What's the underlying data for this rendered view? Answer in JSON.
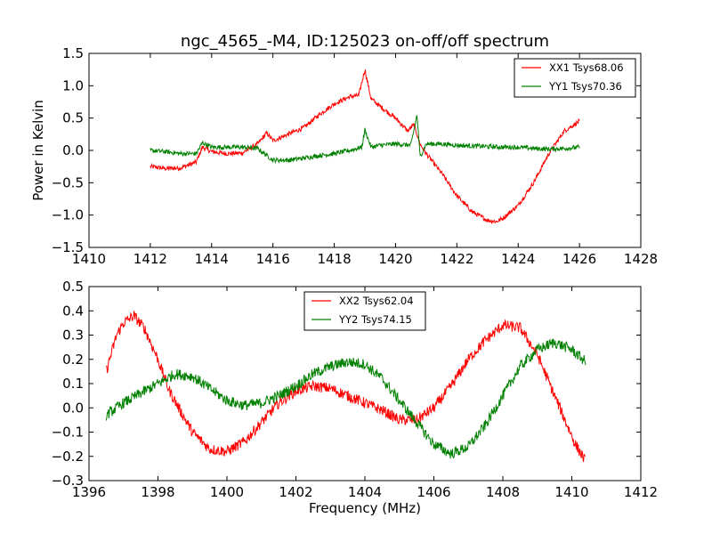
{
  "chart_data": [
    {
      "type": "line",
      "title": "ngc_4565_-M4, ID:125023 on-off/off spectrum",
      "xlabel": "",
      "ylabel": "Power in Kelvin",
      "xlim": [
        1410,
        1428
      ],
      "ylim": [
        -1.5,
        1.5
      ],
      "xticks": [
        "1410",
        "1412",
        "1414",
        "1416",
        "1418",
        "1420",
        "1422",
        "1424",
        "1426",
        "1428"
      ],
      "yticks": [
        "1.5",
        "1.0",
        "0.5",
        "0.0",
        "−0.5",
        "−1.0",
        "−1.5"
      ],
      "legend_position": "top-right",
      "series": [
        {
          "name": "XX1 Tsys68.06",
          "color": "#ff0000",
          "x": [
            1412.0,
            1412.5,
            1413.0,
            1413.5,
            1413.7,
            1414.0,
            1414.5,
            1415.0,
            1415.5,
            1415.8,
            1416.0,
            1416.5,
            1417.0,
            1417.5,
            1418.0,
            1418.5,
            1418.8,
            1419.0,
            1419.2,
            1419.5,
            1420.0,
            1420.4,
            1420.6,
            1420.8,
            1421.0,
            1421.5,
            1422.0,
            1422.5,
            1423.0,
            1423.3,
            1423.5,
            1424.0,
            1424.5,
            1425.0,
            1425.5,
            1426.0
          ],
          "y": [
            -0.25,
            -0.28,
            -0.27,
            -0.18,
            0.05,
            -0.02,
            -0.05,
            -0.04,
            0.1,
            0.27,
            0.15,
            0.25,
            0.35,
            0.55,
            0.72,
            0.83,
            0.85,
            1.25,
            0.8,
            0.68,
            0.5,
            0.3,
            0.4,
            0.1,
            -0.05,
            -0.35,
            -0.7,
            -0.95,
            -1.08,
            -1.1,
            -1.05,
            -0.85,
            -0.5,
            -0.05,
            0.3,
            0.45
          ]
        },
        {
          "name": "YY1 Tsys70.36",
          "color": "#008000",
          "x": [
            1412.0,
            1412.5,
            1413.0,
            1413.5,
            1413.7,
            1414.0,
            1414.5,
            1415.0,
            1415.5,
            1416.0,
            1416.5,
            1417.0,
            1417.5,
            1418.0,
            1418.5,
            1418.9,
            1419.0,
            1419.2,
            1419.5,
            1420.0,
            1420.5,
            1420.7,
            1420.8,
            1421.0,
            1421.5,
            1422.0,
            1422.5,
            1423.0,
            1423.5,
            1424.0,
            1424.5,
            1425.0,
            1425.5,
            1426.0
          ],
          "y": [
            0.0,
            -0.02,
            -0.05,
            -0.05,
            0.12,
            0.05,
            0.05,
            0.05,
            0.03,
            -0.15,
            -0.15,
            -0.12,
            -0.08,
            -0.05,
            0.0,
            0.05,
            0.32,
            0.05,
            0.08,
            0.1,
            0.08,
            0.55,
            -0.1,
            0.1,
            0.1,
            0.08,
            0.07,
            0.06,
            0.05,
            0.05,
            0.03,
            0.02,
            0.03,
            0.05
          ]
        }
      ]
    },
    {
      "type": "line",
      "title": "",
      "xlabel": "Frequency (MHz)",
      "ylabel": "",
      "xlim": [
        1396,
        1412
      ],
      "ylim": [
        -0.3,
        0.5
      ],
      "xticks": [
        "1396",
        "1398",
        "1400",
        "1402",
        "1404",
        "1406",
        "1408",
        "1410",
        "1412"
      ],
      "yticks": [
        "0.5",
        "0.4",
        "0.3",
        "0.2",
        "0.1",
        "0.0",
        "−0.1",
        "−0.2",
        "−0.3"
      ],
      "legend_position": "top-center",
      "series": [
        {
          "name": "XX2 Tsys62.04",
          "color": "#ff0000",
          "x": [
            1396.5,
            1396.8,
            1397.0,
            1397.3,
            1397.6,
            1398.0,
            1398.3,
            1398.6,
            1399.0,
            1399.5,
            1400.0,
            1400.5,
            1401.0,
            1401.5,
            1402.0,
            1402.5,
            1403.0,
            1403.5,
            1404.0,
            1404.5,
            1405.0,
            1405.5,
            1406.0,
            1406.5,
            1407.0,
            1407.5,
            1408.0,
            1408.5,
            1409.0,
            1409.5,
            1409.8,
            1410.1,
            1410.4
          ],
          "y": [
            0.15,
            0.3,
            0.35,
            0.38,
            0.33,
            0.2,
            0.08,
            0.0,
            -0.1,
            -0.17,
            -0.18,
            -0.14,
            -0.06,
            0.02,
            0.07,
            0.09,
            0.08,
            0.05,
            0.02,
            -0.01,
            -0.05,
            -0.05,
            0.0,
            0.09,
            0.2,
            0.28,
            0.34,
            0.33,
            0.22,
            0.05,
            -0.05,
            -0.15,
            -0.22
          ]
        },
        {
          "name": "YY2 Tsys74.15",
          "color": "#008000",
          "x": [
            1396.5,
            1397.0,
            1397.5,
            1398.0,
            1398.5,
            1399.0,
            1399.5,
            1400.0,
            1400.5,
            1401.0,
            1401.5,
            1402.0,
            1402.5,
            1403.0,
            1403.5,
            1404.0,
            1404.5,
            1405.0,
            1405.5,
            1406.0,
            1406.5,
            1407.0,
            1407.5,
            1408.0,
            1408.5,
            1409.0,
            1409.5,
            1410.0,
            1410.4
          ],
          "y": [
            -0.03,
            0.02,
            0.06,
            0.1,
            0.14,
            0.13,
            0.08,
            0.03,
            0.01,
            0.02,
            0.05,
            0.09,
            0.14,
            0.17,
            0.19,
            0.18,
            0.12,
            0.03,
            -0.06,
            -0.15,
            -0.19,
            -0.16,
            -0.07,
            0.05,
            0.17,
            0.24,
            0.27,
            0.24,
            0.19
          ]
        }
      ]
    }
  ]
}
